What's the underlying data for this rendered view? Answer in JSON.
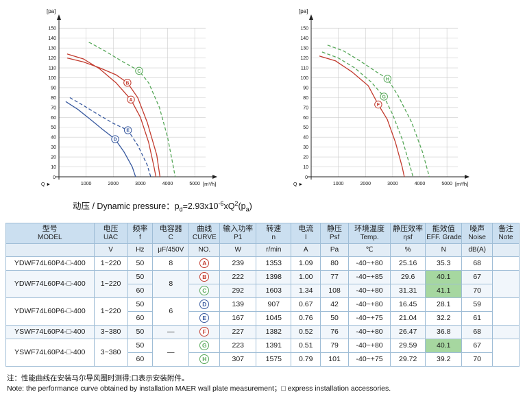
{
  "formula": {
    "label": "动压 / Dynamic pressure：",
    "base": "p",
    "sub": "d",
    "eq": "=2.93x10",
    "exp": "-6",
    "mid": "xQ",
    "exp2": "2",
    "open": "(p",
    "sub2": "a",
    "close": ")"
  },
  "notes": {
    "zh": "注：性能曲线在安装马尔导风圈时测得;口表示安装附件。",
    "en": "Note: the performance curve obtained by installation MAER wall plate measurement；□ express installation accessories."
  },
  "chart_data": [
    {
      "type": "line",
      "title": "Left fan performance curves (static pressure vs air flow)",
      "y_unit": "[pa]",
      "x_unit": "[m³/h]",
      "q_label": "Q",
      "origin_label": "0",
      "xlim": [
        0,
        5400
      ],
      "ylim": [
        0,
        155
      ],
      "x_ticks": [
        1000,
        2000,
        3000,
        4000,
        5000
      ],
      "y_ticks": [
        10,
        20,
        30,
        40,
        50,
        60,
        70,
        80,
        90,
        100,
        110,
        120,
        130,
        140,
        150
      ],
      "grid": true,
      "series": [
        {
          "name": "A",
          "color": "#c23b2e",
          "dashed": false,
          "label_at": [
            2650,
            78
          ],
          "points": [
            [
              300,
              124
            ],
            [
              900,
              119
            ],
            [
              1500,
              109
            ],
            [
              2100,
              95
            ],
            [
              2650,
              78
            ],
            [
              3000,
              60
            ],
            [
              3300,
              35
            ],
            [
              3500,
              10
            ],
            [
              3570,
              0
            ]
          ]
        },
        {
          "name": "B",
          "color": "#c23b2e",
          "dashed": false,
          "label_at": [
            2520,
            95
          ],
          "points": [
            [
              300,
              120
            ],
            [
              900,
              116
            ],
            [
              1500,
              110
            ],
            [
              2100,
              103
            ],
            [
              2520,
              95
            ],
            [
              2900,
              80
            ],
            [
              3250,
              55
            ],
            [
              3600,
              22
            ],
            [
              3720,
              0
            ]
          ]
        },
        {
          "name": "C",
          "color": "#58a85a",
          "dashed": true,
          "label_at": [
            2950,
            107
          ],
          "points": [
            [
              1100,
              136
            ],
            [
              1700,
              127
            ],
            [
              2300,
              117
            ],
            [
              2950,
              107
            ],
            [
              3300,
              95
            ],
            [
              3700,
              70
            ],
            [
              4000,
              40
            ],
            [
              4200,
              12
            ],
            [
              4280,
              0
            ]
          ]
        },
        {
          "name": "D",
          "color": "#3a5ba0",
          "dashed": false,
          "label_at": [
            2070,
            38
          ],
          "points": [
            [
              250,
              76
            ],
            [
              700,
              68
            ],
            [
              1200,
              57
            ],
            [
              1600,
              48
            ],
            [
              2070,
              38
            ],
            [
              2400,
              25
            ],
            [
              2700,
              10
            ],
            [
              2820,
              0
            ]
          ]
        },
        {
          "name": "E",
          "color": "#3a5ba0",
          "dashed": true,
          "label_at": [
            2540,
            47
          ],
          "points": [
            [
              400,
              80
            ],
            [
              900,
              72
            ],
            [
              1500,
              62
            ],
            [
              2000,
              54
            ],
            [
              2540,
              47
            ],
            [
              2900,
              32
            ],
            [
              3250,
              12
            ],
            [
              3380,
              0
            ]
          ]
        }
      ]
    },
    {
      "type": "line",
      "title": "Right fan performance curves (static pressure vs air flow)",
      "y_unit": "[pa]",
      "x_unit": "[m³/h]",
      "q_label": "Q",
      "origin_label": "0",
      "xlim": [
        0,
        5400
      ],
      "ylim": [
        0,
        155
      ],
      "x_ticks": [
        1000,
        2000,
        3000,
        4000,
        5000
      ],
      "y_ticks": [
        10,
        20,
        30,
        40,
        50,
        60,
        70,
        80,
        90,
        100,
        110,
        120,
        130,
        140,
        150
      ],
      "grid": true,
      "series": [
        {
          "name": "F",
          "color": "#c23b2e",
          "dashed": false,
          "label_at": [
            2470,
            73
          ],
          "points": [
            [
              300,
              122
            ],
            [
              900,
              117
            ],
            [
              1500,
              106
            ],
            [
              2100,
              92
            ],
            [
              2470,
              73
            ],
            [
              2800,
              58
            ],
            [
              3100,
              35
            ],
            [
              3350,
              10
            ],
            [
              3430,
              0
            ]
          ]
        },
        {
          "name": "G",
          "color": "#58a85a",
          "dashed": true,
          "label_at": [
            2680,
            81
          ],
          "points": [
            [
              400,
              126
            ],
            [
              1000,
              120
            ],
            [
              1600,
              110
            ],
            [
              2200,
              96
            ],
            [
              2680,
              81
            ],
            [
              3000,
              63
            ],
            [
              3350,
              38
            ],
            [
              3650,
              10
            ],
            [
              3750,
              0
            ]
          ]
        },
        {
          "name": "H",
          "color": "#58a85a",
          "dashed": true,
          "label_at": [
            2810,
            99
          ],
          "points": [
            [
              600,
              133
            ],
            [
              1200,
              127
            ],
            [
              1800,
              117
            ],
            [
              2400,
              106
            ],
            [
              2810,
              99
            ],
            [
              3200,
              82
            ],
            [
              3700,
              55
            ],
            [
              4100,
              25
            ],
            [
              4350,
              0
            ]
          ]
        }
      ]
    }
  ],
  "table": {
    "highlight_color": "#a6d7a0",
    "columns": [
      {
        "zh": "型号",
        "en": "MODEL",
        "unit": ""
      },
      {
        "zh": "电压",
        "en": "UAC",
        "unit": "V"
      },
      {
        "zh": "频率",
        "en": "f",
        "unit": "Hz"
      },
      {
        "zh": "电容器",
        "en": "C",
        "unit": "μF/450V"
      },
      {
        "zh": "曲线",
        "en": "CURVE",
        "unit": "NO."
      },
      {
        "zh": "输入功率",
        "en": "P1",
        "unit": "W"
      },
      {
        "zh": "转速",
        "en": "n",
        "unit": "r/min"
      },
      {
        "zh": "电流",
        "en": "I",
        "unit": "A"
      },
      {
        "zh": "静压",
        "en": "Psf",
        "unit": "Pa"
      },
      {
        "zh": "环境温度",
        "en": "Temp.",
        "unit": "℃"
      },
      {
        "zh": "静压效率",
        "en": "ηsf",
        "unit": "%"
      },
      {
        "zh": "能效值",
        "en": "EFF. Grade",
        "unit": "N"
      },
      {
        "zh": "噪声",
        "en": "Noise",
        "unit": "dB(A)"
      },
      {
        "zh": "备注",
        "en": "Note",
        "unit": ""
      }
    ],
    "groups": [
      {
        "model": "YDWF74L60P4-□-400",
        "voltage": "1~220",
        "capacitor": "8",
        "note": "",
        "rows": [
          {
            "hz": "50",
            "curve": "A",
            "color": "#c23b2e",
            "p1": "239",
            "n": "1353",
            "i": "1.09",
            "psf": "80",
            "temp": "-40~+80",
            "nsf": "25.16",
            "eff": "35.3",
            "eff_hl": false,
            "noise": "68"
          }
        ]
      },
      {
        "model": "YDWF74L60P4-□-400",
        "voltage": "1~220",
        "capacitor": "8",
        "note": "",
        "rows": [
          {
            "hz": "50",
            "curve": "B",
            "color": "#c23b2e",
            "p1": "222",
            "n": "1398",
            "i": "1.00",
            "psf": "77",
            "temp": "-40~+85",
            "nsf": "29.6",
            "eff": "40.1",
            "eff_hl": true,
            "noise": "67"
          },
          {
            "hz": "60",
            "curve": "C",
            "color": "#58a85a",
            "p1": "292",
            "n": "1603",
            "i": "1.34",
            "psf": "108",
            "temp": "-40~+80",
            "nsf": "31.31",
            "eff": "41.1",
            "eff_hl": true,
            "noise": "70"
          }
        ]
      },
      {
        "model": "YDWF74L60P6-□-400",
        "voltage": "1~220",
        "capacitor": "6",
        "note": "",
        "rows": [
          {
            "hz": "50",
            "curve": "D",
            "color": "#3a5ba0",
            "p1": "139",
            "n": "907",
            "i": "0.67",
            "psf": "42",
            "temp": "-40~+80",
            "nsf": "16.45",
            "eff": "28.1",
            "eff_hl": false,
            "noise": "59"
          },
          {
            "hz": "60",
            "curve": "E",
            "color": "#3a5ba0",
            "p1": "167",
            "n": "1045",
            "i": "0.76",
            "psf": "50",
            "temp": "-40~+75",
            "nsf": "21.04",
            "eff": "32.2",
            "eff_hl": false,
            "noise": "61"
          }
        ]
      },
      {
        "model": "YSWF74L60P4-□-400",
        "voltage": "3~380",
        "capacitor": "—",
        "note": "",
        "rows": [
          {
            "hz": "50",
            "curve": "F",
            "color": "#c23b2e",
            "p1": "227",
            "n": "1382",
            "i": "0.52",
            "psf": "76",
            "temp": "-40~+80",
            "nsf": "26.47",
            "eff": "36.8",
            "eff_hl": false,
            "noise": "68"
          }
        ]
      },
      {
        "model": "YSWF74L60P4-□-400",
        "voltage": "3~380",
        "capacitor": "—",
        "note": "",
        "rows": [
          {
            "hz": "50",
            "curve": "G",
            "color": "#58a85a",
            "p1": "223",
            "n": "1391",
            "i": "0.51",
            "psf": "79",
            "temp": "-40~+80",
            "nsf": "29.59",
            "eff": "40.1",
            "eff_hl": true,
            "noise": "67"
          },
          {
            "hz": "60",
            "curve": "H",
            "color": "#58a85a",
            "p1": "307",
            "n": "1575",
            "i": "0.79",
            "psf": "101",
            "temp": "-40~+75",
            "nsf": "29.72",
            "eff": "39.2",
            "eff_hl": false,
            "noise": "70"
          }
        ]
      }
    ]
  }
}
